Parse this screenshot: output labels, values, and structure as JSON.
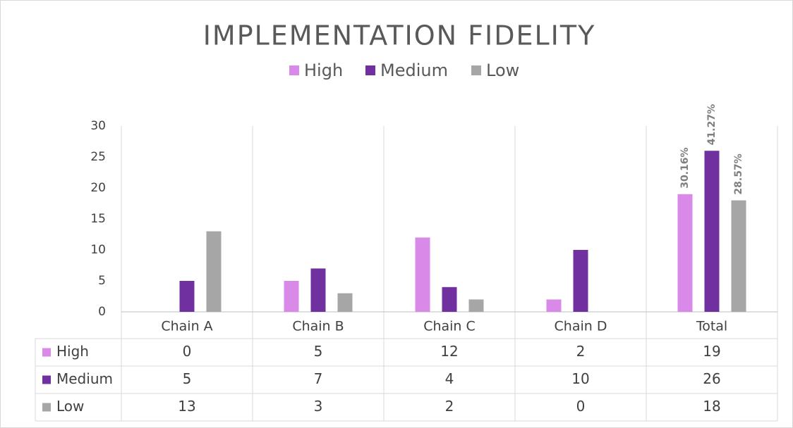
{
  "chart_data": {
    "type": "bar",
    "title": "IMPLEMENTATION FIDELITY",
    "categories": [
      "Chain A",
      "Chain B",
      "Chain C",
      "Chain D",
      "Total"
    ],
    "series": [
      {
        "name": "High",
        "color": "#d98ae8",
        "values": [
          0,
          5,
          12,
          2,
          19
        ]
      },
      {
        "name": "Medium",
        "color": "#7030a0",
        "values": [
          5,
          7,
          4,
          10,
          26
        ]
      },
      {
        "name": "Low",
        "color": "#a6a6a6",
        "values": [
          13,
          3,
          2,
          0,
          18
        ]
      }
    ],
    "annotations": [
      "30.16%",
      "41.27%",
      "28.57%"
    ],
    "ylim": [
      0,
      30
    ],
    "yticks": [
      0,
      5,
      10,
      15,
      20,
      25,
      30
    ],
    "legend": "top",
    "data_table": true
  }
}
